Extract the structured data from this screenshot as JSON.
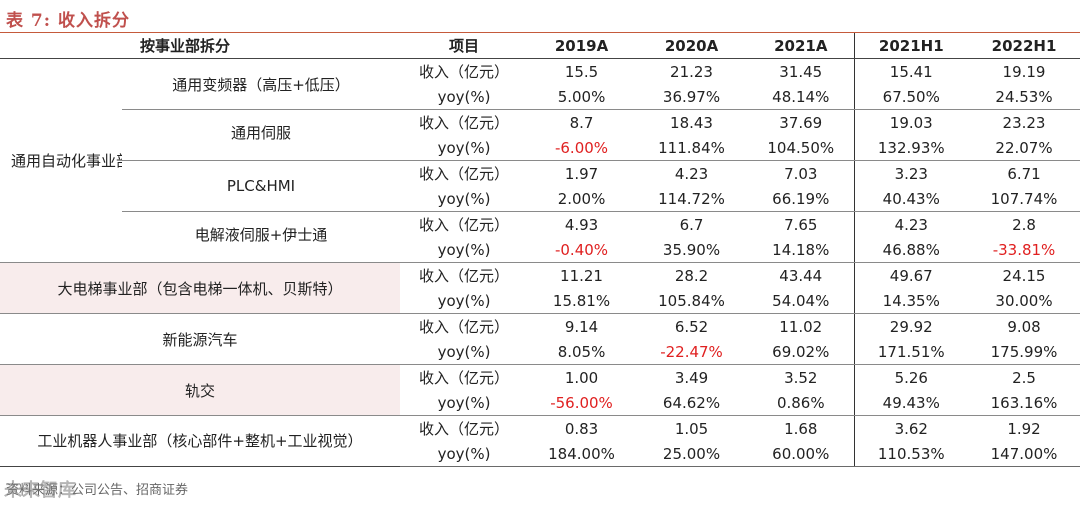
{
  "title": "表 7:  收入拆分",
  "header": {
    "group_label": "按事业部拆分",
    "item_label": "项目",
    "years": [
      "2019A",
      "2020A",
      "2021A",
      "2021H1",
      "2022H1"
    ]
  },
  "metrics": {
    "revenue": "收入（亿元）",
    "yoy": "yoy(%)"
  },
  "categories": [
    {
      "name": "通用自动化事业部",
      "segments": [
        {
          "name": "通用变频器（高压+低压）",
          "revenue": [
            "15.5",
            "21.23",
            "31.45",
            "15.41",
            "19.19"
          ],
          "yoy": [
            "5.00%",
            "36.97%",
            "48.14%",
            "67.50%",
            "24.53%"
          ]
        },
        {
          "name": "通用伺服",
          "revenue": [
            "8.7",
            "18.43",
            "37.69",
            "19.03",
            "23.23"
          ],
          "yoy": [
            "-6.00%",
            "111.84%",
            "104.50%",
            "132.93%",
            "22.07%"
          ]
        },
        {
          "name": "PLC&HMI",
          "revenue": [
            "1.97",
            "4.23",
            "7.03",
            "3.23",
            "6.71"
          ],
          "yoy": [
            "2.00%",
            "114.72%",
            "66.19%",
            "40.43%",
            "107.74%"
          ]
        },
        {
          "name": "电解液伺服+伊士通",
          "revenue": [
            "4.93",
            "6.7",
            "7.65",
            "4.23",
            "2.8"
          ],
          "yoy": [
            "-0.40%",
            "35.90%",
            "14.18%",
            "46.88%",
            "-33.81%"
          ]
        }
      ]
    },
    {
      "name": "大电梯事业部（包含电梯一体机、贝斯特）",
      "revenue": [
        "11.21",
        "28.2",
        "43.44",
        "49.67",
        "24.15"
      ],
      "yoy": [
        "15.81%",
        "105.84%",
        "54.04%",
        "14.35%",
        "30.00%"
      ]
    },
    {
      "name": "新能源汽车",
      "revenue": [
        "9.14",
        "6.52",
        "11.02",
        "29.92",
        "9.08"
      ],
      "yoy": [
        "8.05%",
        "-22.47%",
        "69.02%",
        "171.51%",
        "175.99%"
      ]
    },
    {
      "name": "轨交",
      "revenue": [
        "1.00",
        "3.49",
        "3.52",
        "5.26",
        "2.5"
      ],
      "yoy": [
        "-56.00%",
        "64.62%",
        "0.86%",
        "49.43%",
        "163.16%"
      ]
    },
    {
      "name": "工业机器人事业部（核心部件+整机+工业视觉）",
      "revenue": [
        "0.83",
        "1.05",
        "1.68",
        "3.62",
        "1.92"
      ],
      "yoy": [
        "184.00%",
        "25.00%",
        "60.00%",
        "110.53%",
        "147.00%"
      ]
    }
  ],
  "source": "资料来源：公司公告、招商证券",
  "watermark": "未来智库",
  "colors": {
    "title": "#c0504d",
    "negative": "#e02020",
    "shade": "#f8ecec"
  }
}
